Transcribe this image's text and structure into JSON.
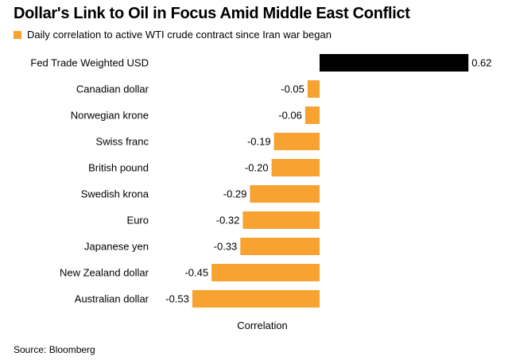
{
  "chart_data": {
    "type": "bar",
    "orientation": "horizontal",
    "title": "Dollar's Link to Oil in Focus Amid Middle East Conflict",
    "legend": [
      {
        "label": "Daily correlation to active WTI crude contract since Iran war began",
        "color": "#f7a231"
      }
    ],
    "categories": [
      "Fed Trade Weighted USD",
      "Canadian dollar",
      "Norwegian krone",
      "Swiss franc",
      "British pound",
      "Swedish krona",
      "Euro",
      "Japanese yen",
      "New Zealand dollar",
      "Australian dollar"
    ],
    "values": [
      0.62,
      -0.05,
      -0.06,
      -0.19,
      -0.2,
      -0.29,
      -0.32,
      -0.33,
      -0.45,
      -0.53
    ],
    "value_labels": [
      "0.62",
      "-0.05",
      "-0.06",
      "-0.19",
      "-0.20",
      "-0.29",
      "-0.32",
      "-0.33",
      "-0.45",
      "-0.53"
    ],
    "bar_colors": [
      "#000000",
      "#f7a231",
      "#f7a231",
      "#f7a231",
      "#f7a231",
      "#f7a231",
      "#f7a231",
      "#f7a231",
      "#f7a231",
      "#f7a231"
    ],
    "xlabel": "Correlation",
    "ylabel": "",
    "xlim": [
      -0.53,
      0.62
    ],
    "grid": false,
    "source": "Source: Bloomberg"
  }
}
